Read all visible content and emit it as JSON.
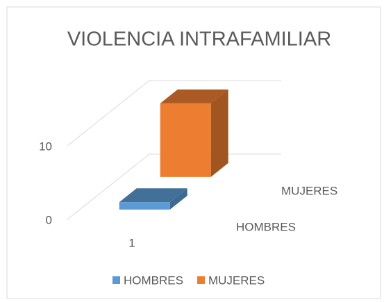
{
  "chart_data": {
    "type": "bar3d",
    "title": "VIOLENCIA INTRAFAMILIAR",
    "categories": [
      "1"
    ],
    "series": [
      {
        "name": "HOMBRES",
        "color": "#5b9bd5",
        "values": [
          1
        ]
      },
      {
        "name": "MUJERES",
        "color": "#ed7d31",
        "values": [
          10
        ]
      }
    ],
    "ylim": [
      0,
      10
    ],
    "yticks": [
      0,
      10
    ],
    "grid": true,
    "legend": "bottom"
  }
}
